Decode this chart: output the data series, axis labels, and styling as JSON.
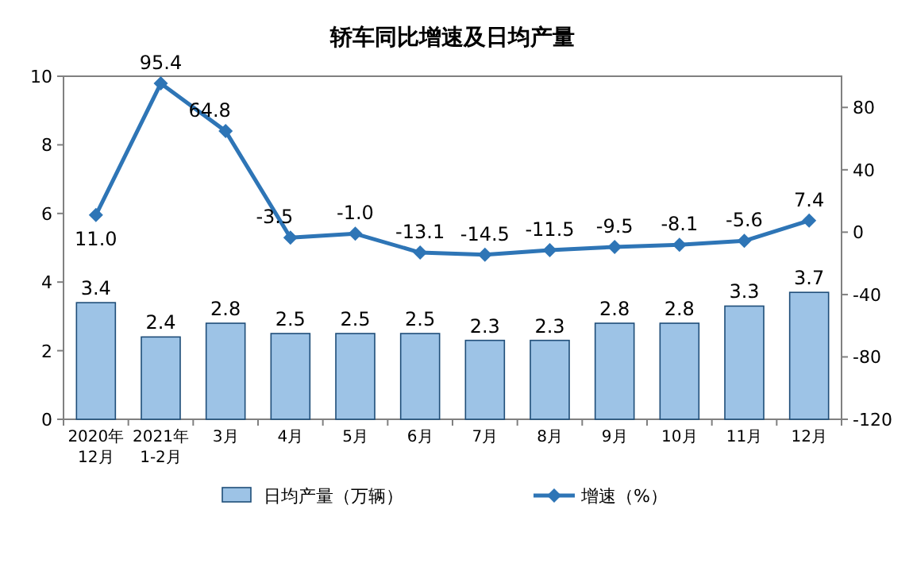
{
  "chart_data": {
    "type": "bar",
    "title": "轿车同比增速及日均产量",
    "categories": [
      "2020年\n12月",
      "2021年\n1-2月",
      "3月",
      "4月",
      "5月",
      "6月",
      "7月",
      "8月",
      "9月",
      "10月",
      "11月",
      "12月"
    ],
    "series": [
      {
        "name": "日均产量（万辆）",
        "color": "#9dc3e6",
        "values": [
          3.4,
          2.4,
          2.8,
          2.5,
          2.5,
          2.5,
          2.3,
          2.3,
          2.8,
          2.8,
          3.3,
          3.7
        ]
      },
      {
        "name": "增速（%）",
        "type": "line",
        "axis": "y2",
        "color": "#2e75b6",
        "marker": "diamond",
        "values": [
          11.0,
          95.4,
          64.8,
          -3.5,
          -1.0,
          -13.1,
          -14.5,
          -11.5,
          -9.5,
          -8.1,
          -5.6,
          7.4
        ],
        "value_labels": [
          "11.0",
          "95.4",
          "64.8",
          "-3.5",
          "-1.0",
          "-13.1",
          "-14.5",
          "-11.5",
          "-9.5",
          "-8.1",
          "-5.6",
          "7.4"
        ]
      }
    ],
    "ylim": [
      0,
      10
    ],
    "yticks": [
      0,
      2,
      4,
      6,
      8,
      10
    ],
    "y2lim": [
      -120,
      100
    ],
    "y2ticks": [
      -120,
      -80,
      -40,
      0,
      40,
      80
    ],
    "data_labels": true,
    "legend": "bottom",
    "grid": false
  }
}
